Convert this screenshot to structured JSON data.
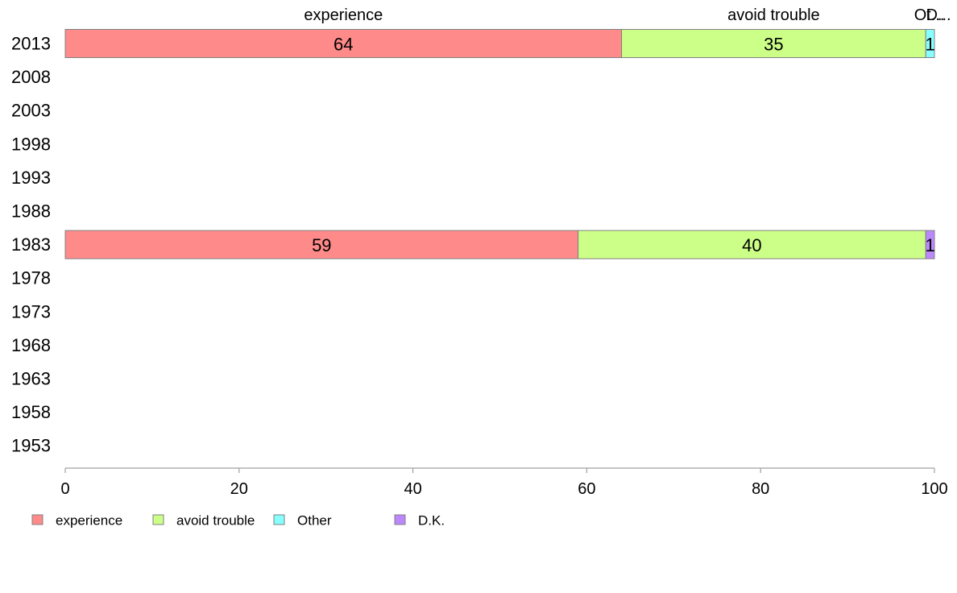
{
  "chart_data": {
    "type": "bar",
    "orientation": "horizontal",
    "stacked": true,
    "categories": [
      "2013",
      "2008",
      "2003",
      "1998",
      "1993",
      "1988",
      "1983",
      "1978",
      "1973",
      "1968",
      "1963",
      "1958",
      "1953"
    ],
    "series": [
      {
        "name": "experience",
        "color": "#ff8a8a",
        "values": [
          64,
          null,
          null,
          null,
          null,
          null,
          59,
          null,
          null,
          null,
          null,
          null,
          null
        ]
      },
      {
        "name": "avoid trouble",
        "color": "#ccff88",
        "values": [
          35,
          null,
          null,
          null,
          null,
          null,
          40,
          null,
          null,
          null,
          null,
          null,
          null
        ]
      },
      {
        "name": "Other",
        "color": "#88ffff",
        "values": [
          1,
          null,
          null,
          null,
          null,
          null,
          0,
          null,
          null,
          null,
          null,
          null,
          null
        ]
      },
      {
        "name": "D.K.",
        "color": "#bb88ff",
        "values": [
          0,
          null,
          null,
          null,
          null,
          null,
          1,
          null,
          null,
          null,
          null,
          null,
          null
        ]
      }
    ],
    "top_labels": [
      "experience",
      "avoid trouble",
      "Ot...",
      "D..."
    ],
    "xlim": [
      0,
      100
    ],
    "xticks": [
      0,
      20,
      40,
      60,
      80,
      100
    ],
    "legend_position": "bottom-left",
    "grid": false,
    "title": "",
    "xlabel": "",
    "ylabel": ""
  }
}
